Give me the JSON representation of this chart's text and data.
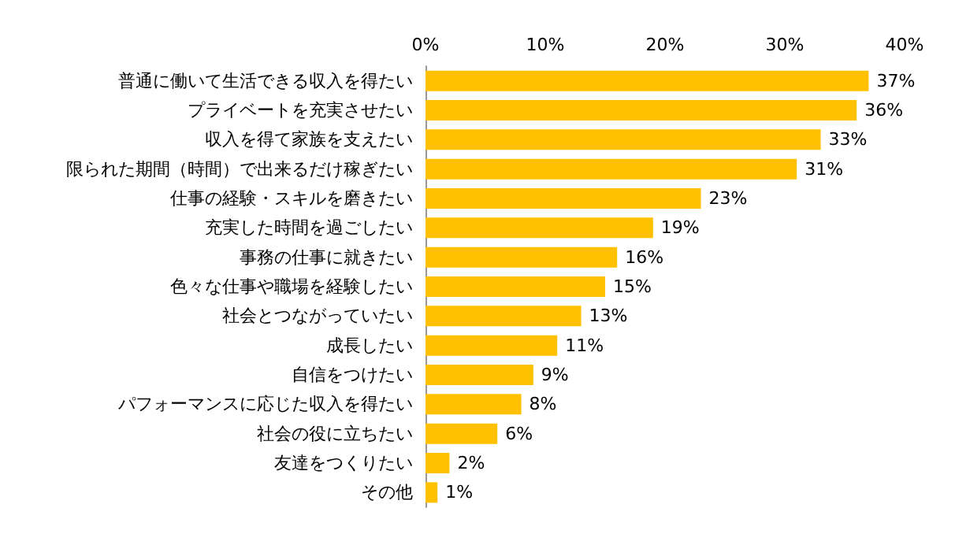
{
  "chart_data": {
    "type": "bar",
    "orientation": "horizontal",
    "categories": [
      "普通に働いて生活できる収入を得たい",
      "プライベートを充実させたい",
      "収入を得て家族を支えたい",
      "限られた期間（時間）で出来るだけ稼ぎたい",
      "仕事の経験・スキルを磨きたい",
      "充実した時間を過ごしたい",
      "事務の仕事に就きたい",
      "色々な仕事や職場を経験したい",
      "社会とつながっていたい",
      "成長したい",
      "自信をつけたい",
      "パフォーマンスに応じた収入を得たい",
      "社会の役に立ちたい",
      "友達をつくりたい",
      "その他"
    ],
    "values": [
      37,
      36,
      33,
      31,
      23,
      19,
      16,
      15,
      13,
      11,
      9,
      8,
      6,
      2,
      1
    ],
    "value_labels": [
      "37%",
      "36%",
      "33%",
      "31%",
      "23%",
      "19%",
      "16%",
      "15%",
      "13%",
      "11%",
      "9%",
      "8%",
      "6%",
      "2%",
      "1%"
    ],
    "color": "#ffc000",
    "xlim": [
      0,
      40
    ],
    "xticks": [
      {
        "value": 0,
        "label": "0%"
      },
      {
        "value": 10,
        "label": "10%"
      },
      {
        "value": 20,
        "label": "20%"
      },
      {
        "value": 30,
        "label": "30%"
      },
      {
        "value": 40,
        "label": "40%"
      }
    ],
    "grid": false
  }
}
